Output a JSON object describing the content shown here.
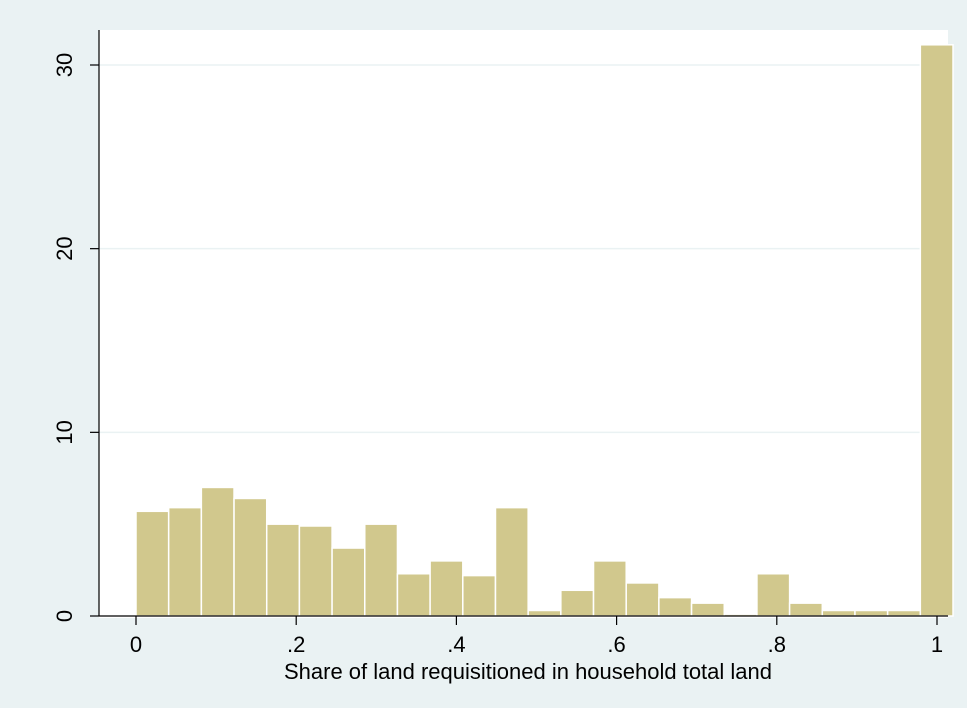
{
  "chart_data": {
    "type": "bar",
    "title": "",
    "xlabel": "Share of land requisitioned in household total land",
    "ylabel": "",
    "xlim": [
      0,
      1
    ],
    "ylim": [
      0,
      32
    ],
    "xticks": [
      {
        "value": 0,
        "label": "0"
      },
      {
        "value": 0.2,
        "label": ".2"
      },
      {
        "value": 0.4,
        "label": ".4"
      },
      {
        "value": 0.6,
        "label": ".6"
      },
      {
        "value": 0.8,
        "label": ".8"
      },
      {
        "value": 1,
        "label": "1"
      }
    ],
    "yticks": [
      {
        "value": 0,
        "label": "0"
      },
      {
        "value": 10,
        "label": "10"
      },
      {
        "value": 20,
        "label": "20"
      },
      {
        "value": 30,
        "label": "30"
      }
    ],
    "bin_width": 0.0408,
    "bin_starts": [
      0,
      0.0408,
      0.0816,
      0.1224,
      0.1632,
      0.204,
      0.2448,
      0.2856,
      0.3264,
      0.3672,
      0.408,
      0.4488,
      0.4896,
      0.5304,
      0.5712,
      0.612,
      0.6528,
      0.6936,
      0.7344,
      0.7752,
      0.816,
      0.8568,
      0.8976,
      0.9384,
      0.9792
    ],
    "values": [
      5.7,
      5.9,
      7.0,
      6.4,
      5.0,
      4.9,
      3.7,
      5.0,
      2.3,
      3.0,
      2.2,
      5.9,
      0.3,
      1.4,
      3.0,
      1.8,
      1.0,
      0.7,
      0.1,
      2.3,
      0.7,
      0.3,
      0.3,
      0.3,
      31.1
    ],
    "grid": true,
    "legend": "none",
    "colors": {
      "outer_background": "#eaf2f3",
      "plot_background": "#ffffff",
      "bar_fill": "#d1c88d",
      "bar_stroke": "#ffffff",
      "grid": "#eaf2f3",
      "axis": "#000000"
    }
  }
}
